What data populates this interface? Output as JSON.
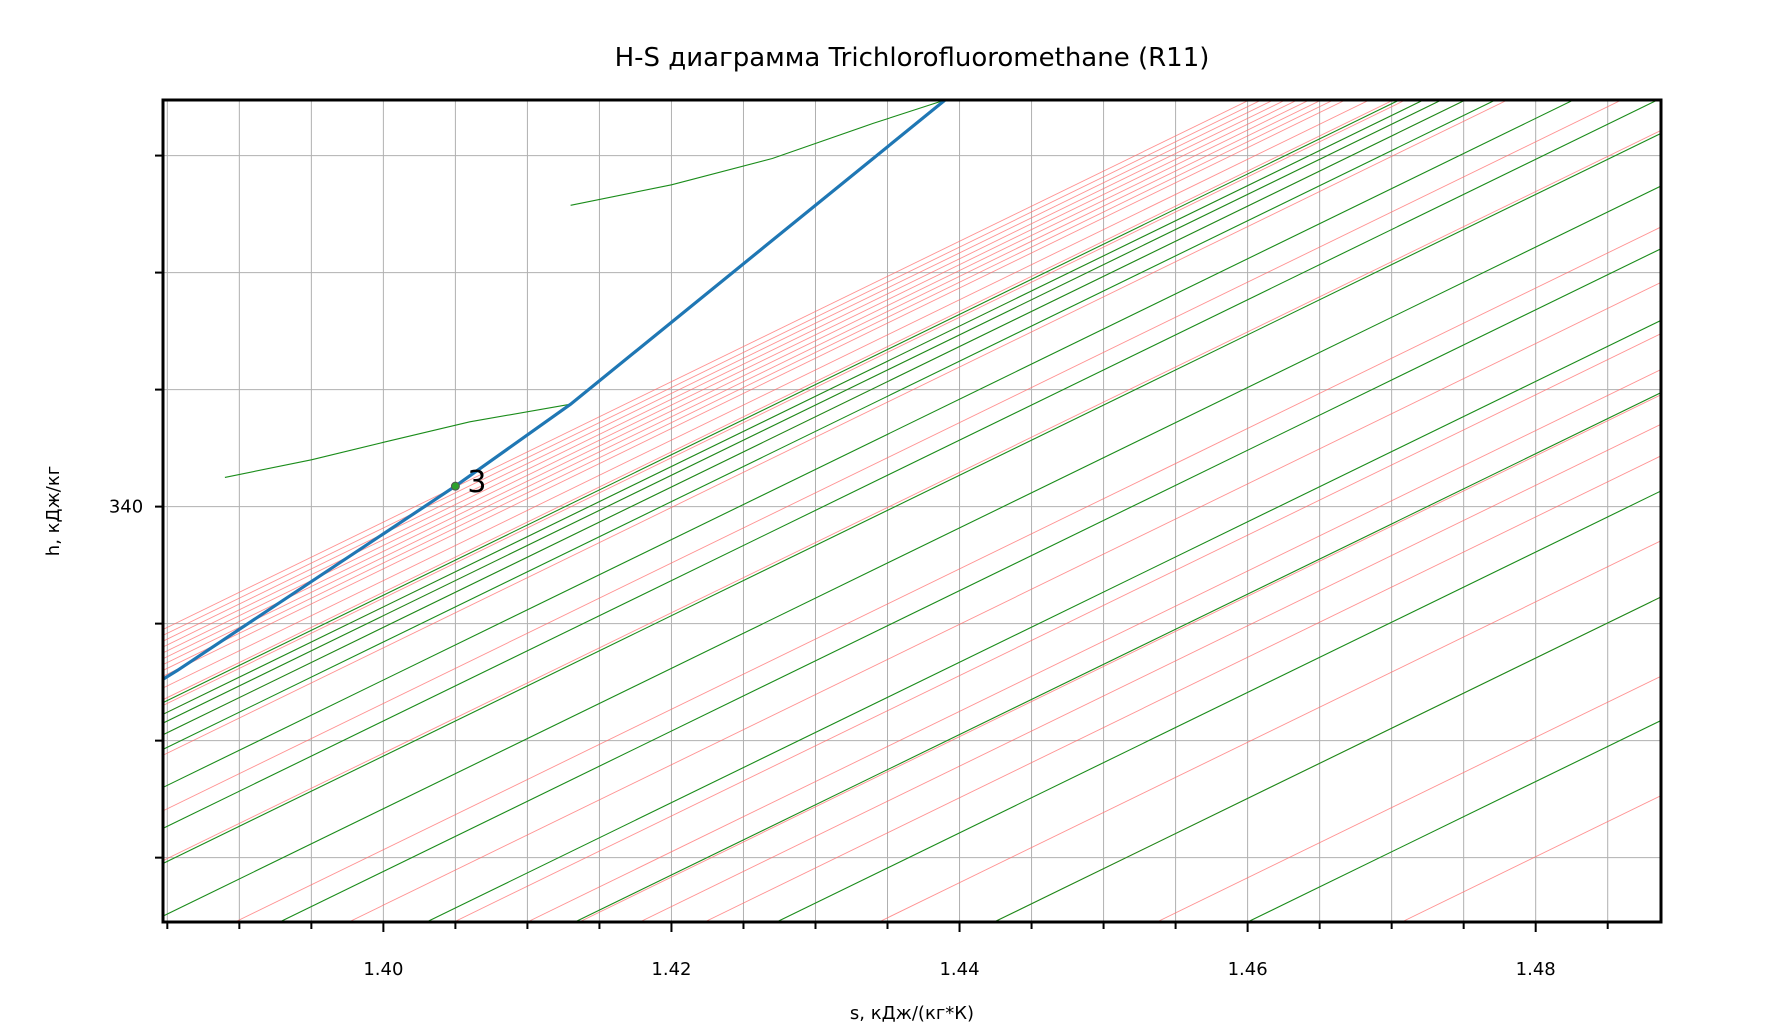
{
  "chart_data": {
    "type": "line",
    "title": "H-S диаграмма Trichlorofluoromethane (R11)",
    "xlabel": "s, кДж/(кг*К)",
    "ylabel": "h, кДж/кг",
    "xlim": [
      1.3847,
      1.4887
    ],
    "ylim": [
      325.8,
      353.9
    ],
    "x_major_ticks": [
      1.4,
      1.42,
      1.44,
      1.46,
      1.48
    ],
    "x_tick_labels": [
      "1.40",
      "1.42",
      "1.44",
      "1.46",
      "1.48"
    ],
    "x_minor_ticks": [
      1.385,
      1.39,
      1.395,
      1.405,
      1.41,
      1.415,
      1.425,
      1.43,
      1.435,
      1.445,
      1.45,
      1.455,
      1.465,
      1.47,
      1.475,
      1.485
    ],
    "y_ticks": [
      328,
      332,
      336,
      340,
      344,
      348,
      352
    ],
    "y_tick_labels": [
      "",
      "",
      "",
      "340",
      "",
      "",
      ""
    ],
    "grid": true,
    "main_curve": {
      "color": "#1f77b4",
      "points": [
        [
          1.3847,
          334.1
        ],
        [
          1.3857,
          334.4
        ],
        [
          1.405,
          340.7
        ],
        [
          1.413,
          343.5
        ],
        [
          1.439,
          353.9
        ]
      ]
    },
    "points": [
      {
        "label": "3",
        "s": 1.405,
        "h": 340.7,
        "color": "#2ca02c"
      }
    ],
    "red_lines": {
      "color": "#ff6e6e",
      "slope": 240,
      "starts": [
        [
          1.3847,
          335.8
        ],
        [
          1.3847,
          335.6
        ],
        [
          1.3847,
          335.4
        ],
        [
          1.3847,
          335.2
        ],
        [
          1.3847,
          335.0
        ],
        [
          1.3847,
          334.8
        ],
        [
          1.3847,
          334.6
        ],
        [
          1.3847,
          334.4
        ],
        [
          1.3847,
          334.2
        ],
        [
          1.3847,
          333.8
        ],
        [
          1.3847,
          333.4
        ],
        [
          1.3847,
          333.2
        ],
        [
          1.3847,
          332.9
        ],
        [
          1.3847,
          332.6
        ],
        [
          1.3847,
          332.2
        ],
        [
          1.3847,
          331.5
        ],
        [
          1.3847,
          329.6
        ],
        [
          1.3847,
          327.9
        ],
        [
          1.3897,
          325.8
        ],
        [
          1.3976,
          325.8
        ],
        [
          1.4049,
          325.8
        ],
        [
          1.41,
          325.8
        ],
        [
          1.4136,
          325.8
        ],
        [
          1.4178,
          325.8
        ],
        [
          1.4223,
          325.8
        ],
        [
          1.4344,
          325.8
        ],
        [
          1.4424,
          325.8
        ],
        [
          1.4537,
          325.8
        ],
        [
          1.4707,
          325.8
        ]
      ]
    },
    "green_lines": {
      "color": "#1a8c1a",
      "slope": 240,
      "starts": [
        [
          1.3847,
          333.3
        ],
        [
          1.3847,
          332.9
        ],
        [
          1.3847,
          332.6
        ],
        [
          1.3847,
          332.2
        ],
        [
          1.3847,
          331.7
        ],
        [
          1.3847,
          330.4
        ],
        [
          1.3847,
          329.0
        ],
        [
          1.3847,
          327.8
        ],
        [
          1.3847,
          326.0
        ],
        [
          1.3928,
          325.8
        ],
        [
          1.403,
          325.8
        ],
        [
          1.4133,
          325.8
        ],
        [
          1.4273,
          325.8
        ],
        [
          1.4424,
          325.8
        ],
        [
          1.46,
          325.8
        ]
      ]
    },
    "green_curves": [
      {
        "color": "#1a8c1a",
        "points": [
          [
            1.389,
            341.0
          ],
          [
            1.395,
            341.6
          ],
          [
            1.4,
            342.2
          ],
          [
            1.406,
            342.9
          ],
          [
            1.413,
            343.5
          ]
        ]
      },
      {
        "color": "#1a8c1a",
        "points": [
          [
            1.413,
            350.3
          ],
          [
            1.42,
            351.0
          ],
          [
            1.427,
            351.9
          ],
          [
            1.434,
            353.1
          ],
          [
            1.439,
            353.9
          ]
        ]
      }
    ]
  }
}
